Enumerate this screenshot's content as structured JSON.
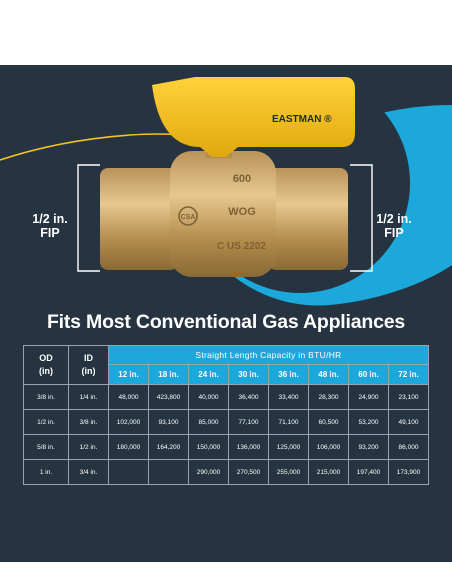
{
  "left_fip": {
    "line1": "1/2 in.",
    "line2": "FIP"
  },
  "right_fip": {
    "line1": "1/2 in.",
    "line2": "FIP"
  },
  "valve": {
    "brand": "EASTMAN",
    "brand_mark": "®",
    "casting_1": "600",
    "casting_2": "WOG",
    "casting_3": "C US  2202",
    "cert_mark": "CSA"
  },
  "headline": "Fits Most Conventional Gas Appliances",
  "table": {
    "od_header": [
      "OD",
      "(in)"
    ],
    "id_header": [
      "ID",
      "(in)"
    ],
    "span_header": "Straight Length Capacity in BTU/HR",
    "lengths": [
      "12 in.",
      "18 in.",
      "24 in.",
      "30 in.",
      "36 in.",
      "48 in.",
      "60 in.",
      "72 in."
    ],
    "rows": [
      {
        "od": "3/8 in.",
        "id": "1/4 in.",
        "values": [
          "48,000",
          "423,800",
          "40,000",
          "36,400",
          "33,400",
          "28,300",
          "24,900",
          "23,100"
        ]
      },
      {
        "od": "1/2 in.",
        "id": "3/8 in.",
        "values": [
          "102,000",
          "93,100",
          "85,000",
          "77,100",
          "71,100",
          "60,500",
          "53,200",
          "49,100"
        ]
      },
      {
        "od": "5/8 in.",
        "id": "1/2 in.",
        "values": [
          "180,000",
          "164,200",
          "150,000",
          "136,000",
          "125,000",
          "106,000",
          "93,200",
          "86,000"
        ]
      },
      {
        "od": "1 in.",
        "id": "3/4 in.",
        "values": [
          "",
          "",
          "290,000",
          "270,500",
          "255,000",
          "215,000",
          "197,400",
          "173,900"
        ]
      }
    ]
  },
  "colors": {
    "navy": "#253440",
    "cyan": "#1da8dc",
    "yellow": "#f4c21f",
    "brass": "#c9a463",
    "white": "#ffffff"
  }
}
